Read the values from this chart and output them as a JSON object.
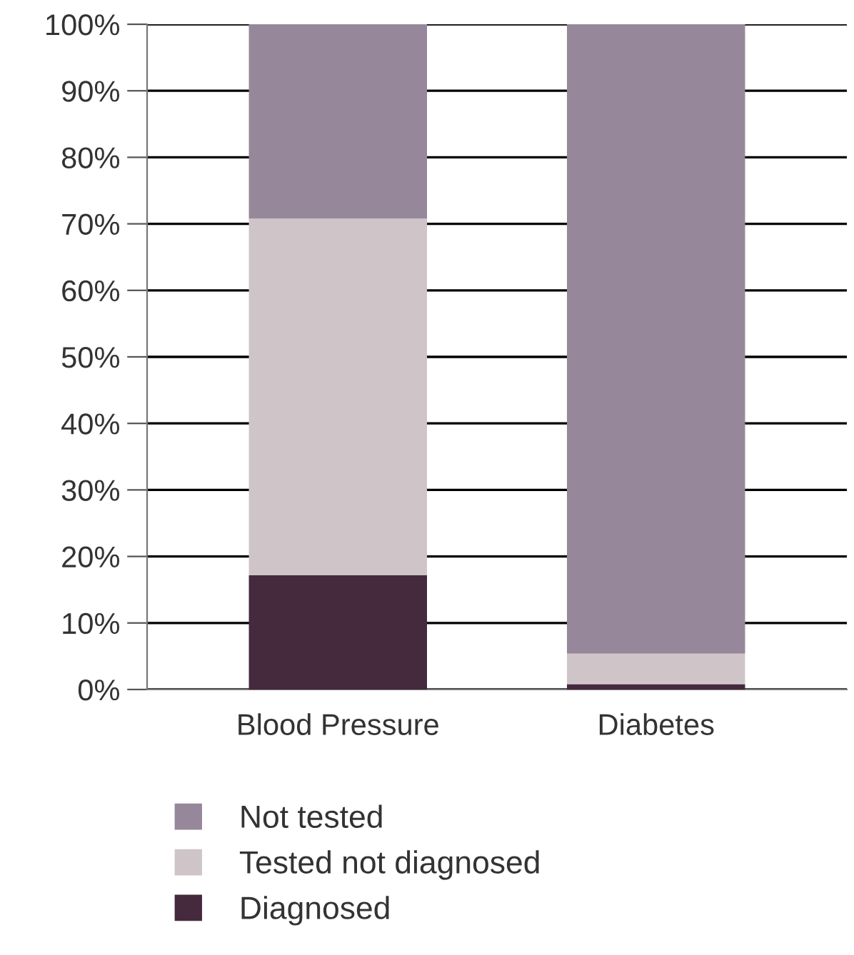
{
  "chart_data": {
    "type": "bar",
    "stacked": true,
    "categories": [
      "Blood Pressure",
      "Diabetes"
    ],
    "series": [
      {
        "name": "Diagnosed",
        "color": "#45293d",
        "values": [
          17.2,
          0.8
        ]
      },
      {
        "name": "Tested not diagnosed",
        "color": "#cfc5c8",
        "values": [
          53.6,
          4.6
        ]
      },
      {
        "name": "Not tested",
        "color": "#96879a",
        "values": [
          29.2,
          94.6
        ]
      }
    ],
    "ylim": [
      0,
      100
    ],
    "yticks": [
      {
        "value": 0,
        "label": "0%"
      },
      {
        "value": 10,
        "label": "10%"
      },
      {
        "value": 20,
        "label": "20%"
      },
      {
        "value": 30,
        "label": "30%"
      },
      {
        "value": 40,
        "label": "40%"
      },
      {
        "value": 50,
        "label": "50%"
      },
      {
        "value": 60,
        "label": "60%"
      },
      {
        "value": 70,
        "label": "70%"
      },
      {
        "value": 80,
        "label": "80%"
      },
      {
        "value": 90,
        "label": "90%"
      },
      {
        "value": 100,
        "label": "100%"
      }
    ],
    "grid": "y",
    "legend": "bottom"
  }
}
